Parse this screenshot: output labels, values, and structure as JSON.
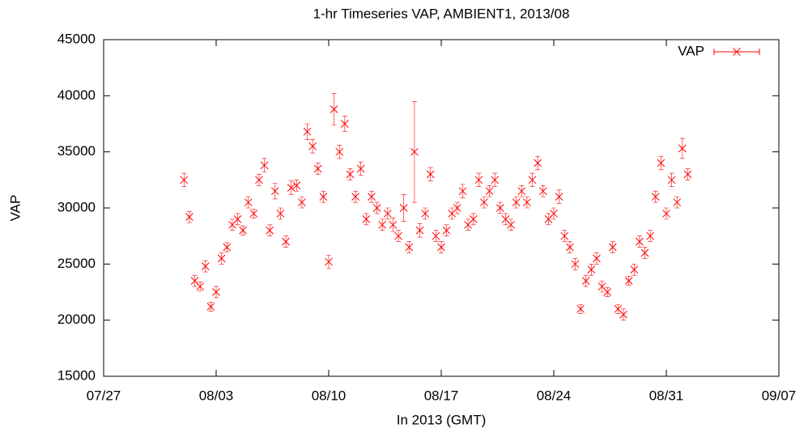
{
  "chart_data": {
    "type": "scatter",
    "title": "1-hr Timeseries VAP, AMBIENT1, 2013/08",
    "x_label": "In 2013 (GMT)",
    "y_label": "VAP",
    "legend": "top-right",
    "grid": false,
    "xlim": [
      "2013-07-27T00:00",
      "2013-09-07T00:00"
    ],
    "xticks": [
      {
        "value": "2013-07-27T00:00",
        "label": "07/27"
      },
      {
        "value": "2013-08-03T00:00",
        "label": "08/03"
      },
      {
        "value": "2013-08-10T00:00",
        "label": "08/10"
      },
      {
        "value": "2013-08-17T00:00",
        "label": "08/17"
      },
      {
        "value": "2013-08-24T00:00",
        "label": "08/24"
      },
      {
        "value": "2013-08-31T00:00",
        "label": "08/31"
      },
      {
        "value": "2013-09-07T00:00",
        "label": "09/07"
      }
    ],
    "ylim": [
      15000,
      45000
    ],
    "yticks": [
      15000,
      20000,
      25000,
      30000,
      35000,
      40000,
      45000
    ],
    "x": [
      "2013-08-01T00:00",
      "2013-08-01T08:00",
      "2013-08-01T16:00",
      "2013-08-02T00:00",
      "2013-08-02T08:00",
      "2013-08-02T16:00",
      "2013-08-03T00:00",
      "2013-08-03T08:00",
      "2013-08-03T16:00",
      "2013-08-04T00:00",
      "2013-08-04T08:00",
      "2013-08-04T16:00",
      "2013-08-05T00:00",
      "2013-08-05T08:00",
      "2013-08-05T16:00",
      "2013-08-06T00:00",
      "2013-08-06T08:00",
      "2013-08-06T16:00",
      "2013-08-07T00:00",
      "2013-08-07T08:00",
      "2013-08-07T16:00",
      "2013-08-08T00:00",
      "2013-08-08T08:00",
      "2013-08-08T16:00",
      "2013-08-09T00:00",
      "2013-08-09T08:00",
      "2013-08-09T16:00",
      "2013-08-10T00:00",
      "2013-08-10T08:00",
      "2013-08-10T16:00",
      "2013-08-11T00:00",
      "2013-08-11T08:00",
      "2013-08-11T16:00",
      "2013-08-12T00:00",
      "2013-08-12T08:00",
      "2013-08-12T16:00",
      "2013-08-13T00:00",
      "2013-08-13T08:00",
      "2013-08-13T16:00",
      "2013-08-14T00:00",
      "2013-08-14T08:00",
      "2013-08-14T16:00",
      "2013-08-15T00:00",
      "2013-08-15T08:00",
      "2013-08-15T16:00",
      "2013-08-16T00:00",
      "2013-08-16T08:00",
      "2013-08-16T16:00",
      "2013-08-17T00:00",
      "2013-08-17T08:00",
      "2013-08-17T16:00",
      "2013-08-18T00:00",
      "2013-08-18T08:00",
      "2013-08-18T16:00",
      "2013-08-19T00:00",
      "2013-08-19T08:00",
      "2013-08-19T16:00",
      "2013-08-20T00:00",
      "2013-08-20T08:00",
      "2013-08-20T16:00",
      "2013-08-21T00:00",
      "2013-08-21T08:00",
      "2013-08-21T16:00",
      "2013-08-22T00:00",
      "2013-08-22T08:00",
      "2013-08-22T16:00",
      "2013-08-23T00:00",
      "2013-08-23T08:00",
      "2013-08-23T16:00",
      "2013-08-24T00:00",
      "2013-08-24T08:00",
      "2013-08-24T16:00",
      "2013-08-25T00:00",
      "2013-08-25T08:00",
      "2013-08-25T16:00",
      "2013-08-26T00:00",
      "2013-08-26T08:00",
      "2013-08-26T16:00",
      "2013-08-27T00:00",
      "2013-08-27T08:00",
      "2013-08-27T16:00",
      "2013-08-28T00:00",
      "2013-08-28T08:00",
      "2013-08-28T16:00",
      "2013-08-29T00:00",
      "2013-08-29T08:00",
      "2013-08-29T16:00",
      "2013-08-30T00:00",
      "2013-08-30T08:00",
      "2013-08-30T16:00",
      "2013-08-31T00:00",
      "2013-08-31T08:00",
      "2013-08-31T16:00",
      "2013-09-01T00:00",
      "2013-09-01T08:00"
    ],
    "series": [
      {
        "name": "VAP",
        "color": "#ff0000",
        "values": [
          32500,
          29200,
          23500,
          23000,
          24800,
          21200,
          22500,
          25500,
          26500,
          28500,
          29000,
          28000,
          30500,
          29500,
          32500,
          33800,
          28000,
          31500,
          29500,
          27000,
          31800,
          32000,
          30500,
          36800,
          35500,
          33500,
          31000,
          25200,
          38800,
          35000,
          37500,
          33000,
          31000,
          33500,
          29000,
          31000,
          30000,
          28500,
          29500,
          28500,
          27500,
          30000,
          26500,
          35000,
          28000,
          29500,
          33000,
          27500,
          26500,
          28000,
          29500,
          30000,
          31500,
          28500,
          29000,
          32500,
          30500,
          31500,
          32500,
          30000,
          29000,
          28500,
          30500,
          31500,
          30500,
          32500,
          34000,
          31500,
          29000,
          29500,
          31000,
          27500,
          26500,
          25000,
          21000,
          23500,
          24500,
          25500,
          23000,
          22500,
          26500,
          21000,
          20500,
          23500,
          24500,
          27000,
          26000,
          27500,
          31000,
          34000,
          29500,
          32500,
          30500,
          35300,
          33000
        ],
        "errors": [
          600,
          500,
          500,
          400,
          500,
          400,
          500,
          500,
          400,
          500,
          500,
          400,
          500,
          400,
          500,
          600,
          500,
          700,
          500,
          500,
          600,
          500,
          500,
          700,
          600,
          500,
          500,
          600,
          1400,
          600,
          700,
          500,
          500,
          600,
          500,
          500,
          500,
          500,
          500,
          600,
          500,
          1200,
          500,
          4500,
          600,
          500,
          600,
          500,
          500,
          500,
          500,
          500,
          600,
          500,
          500,
          600,
          500,
          500,
          600,
          500,
          500,
          500,
          500,
          500,
          500,
          600,
          600,
          500,
          500,
          500,
          600,
          500,
          500,
          500,
          400,
          500,
          500,
          500,
          500,
          400,
          500,
          400,
          500,
          400,
          500,
          500,
          500,
          500,
          500,
          600,
          500,
          600,
          500,
          900,
          500
        ]
      }
    ]
  }
}
